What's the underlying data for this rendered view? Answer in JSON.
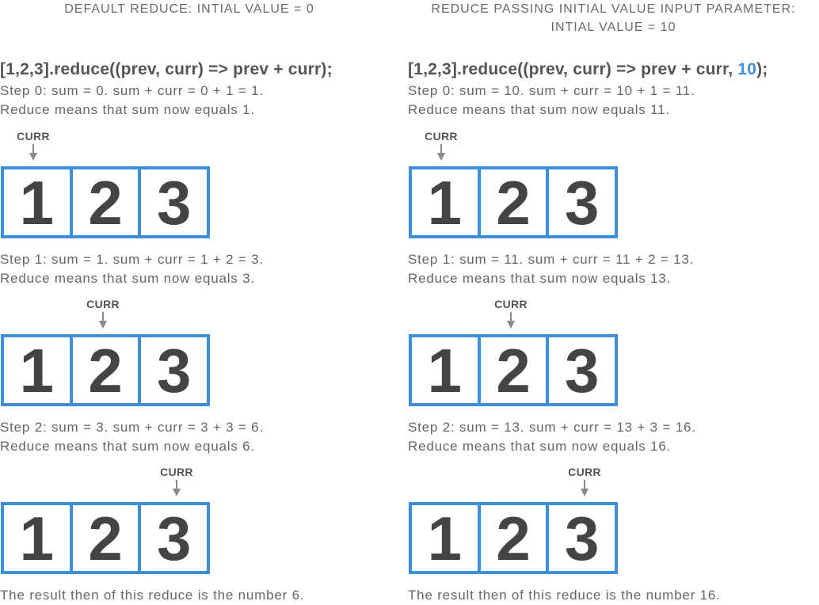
{
  "left": {
    "heading": "DEFAULT REDUCE: INTIAL VALUE = 0",
    "code": "[1,2,3].reduce((prev, curr) => prev + curr);",
    "steps": [
      {
        "line1": "Step 0: sum = 0. sum + curr = 0 + 1 = 1.",
        "line2": "Reduce means that sum now equals 1."
      },
      {
        "line1": "Step 1: sum = 1. sum + curr = 1 + 2 = 3.",
        "line2": "Reduce means that sum now equals 3."
      },
      {
        "line1": "Step 2: sum = 3. sum + curr = 3 + 3 = 6.",
        "line2": "Reduce means that sum now equals 6."
      }
    ],
    "result": "The result then of this reduce is the number 6."
  },
  "right": {
    "heading_line1": "REDUCE PASSING INITIAL VALUE INPUT PARAMETER:",
    "heading_line2": "INTIAL VALUE = 10",
    "code_prefix": "[1,2,3].reduce((prev, curr) => prev + curr, ",
    "code_initial": "10",
    "code_suffix": ");",
    "steps": [
      {
        "line1": "Step 0: sum = 10. sum + curr = 10 + 1 = 11.",
        "line2": "Reduce means that sum now equals 11."
      },
      {
        "line1": "Step 1: sum = 11. sum + curr = 11 + 2 = 13.",
        "line2": "Reduce means that sum now equals 13."
      },
      {
        "line1": "Step 2: sum = 13. sum + curr = 13 + 3 = 16.",
        "line2": "Reduce means that sum now equals 16."
      }
    ],
    "result": "The result then of this reduce is the number 16."
  },
  "pointer_label": "CURR",
  "array": [
    "1",
    "2",
    "3"
  ],
  "colors": {
    "array_border": "#3f8ed8",
    "highlight": "#3f8ed8",
    "text": "#555555",
    "arrow": "#8a8a8a"
  }
}
